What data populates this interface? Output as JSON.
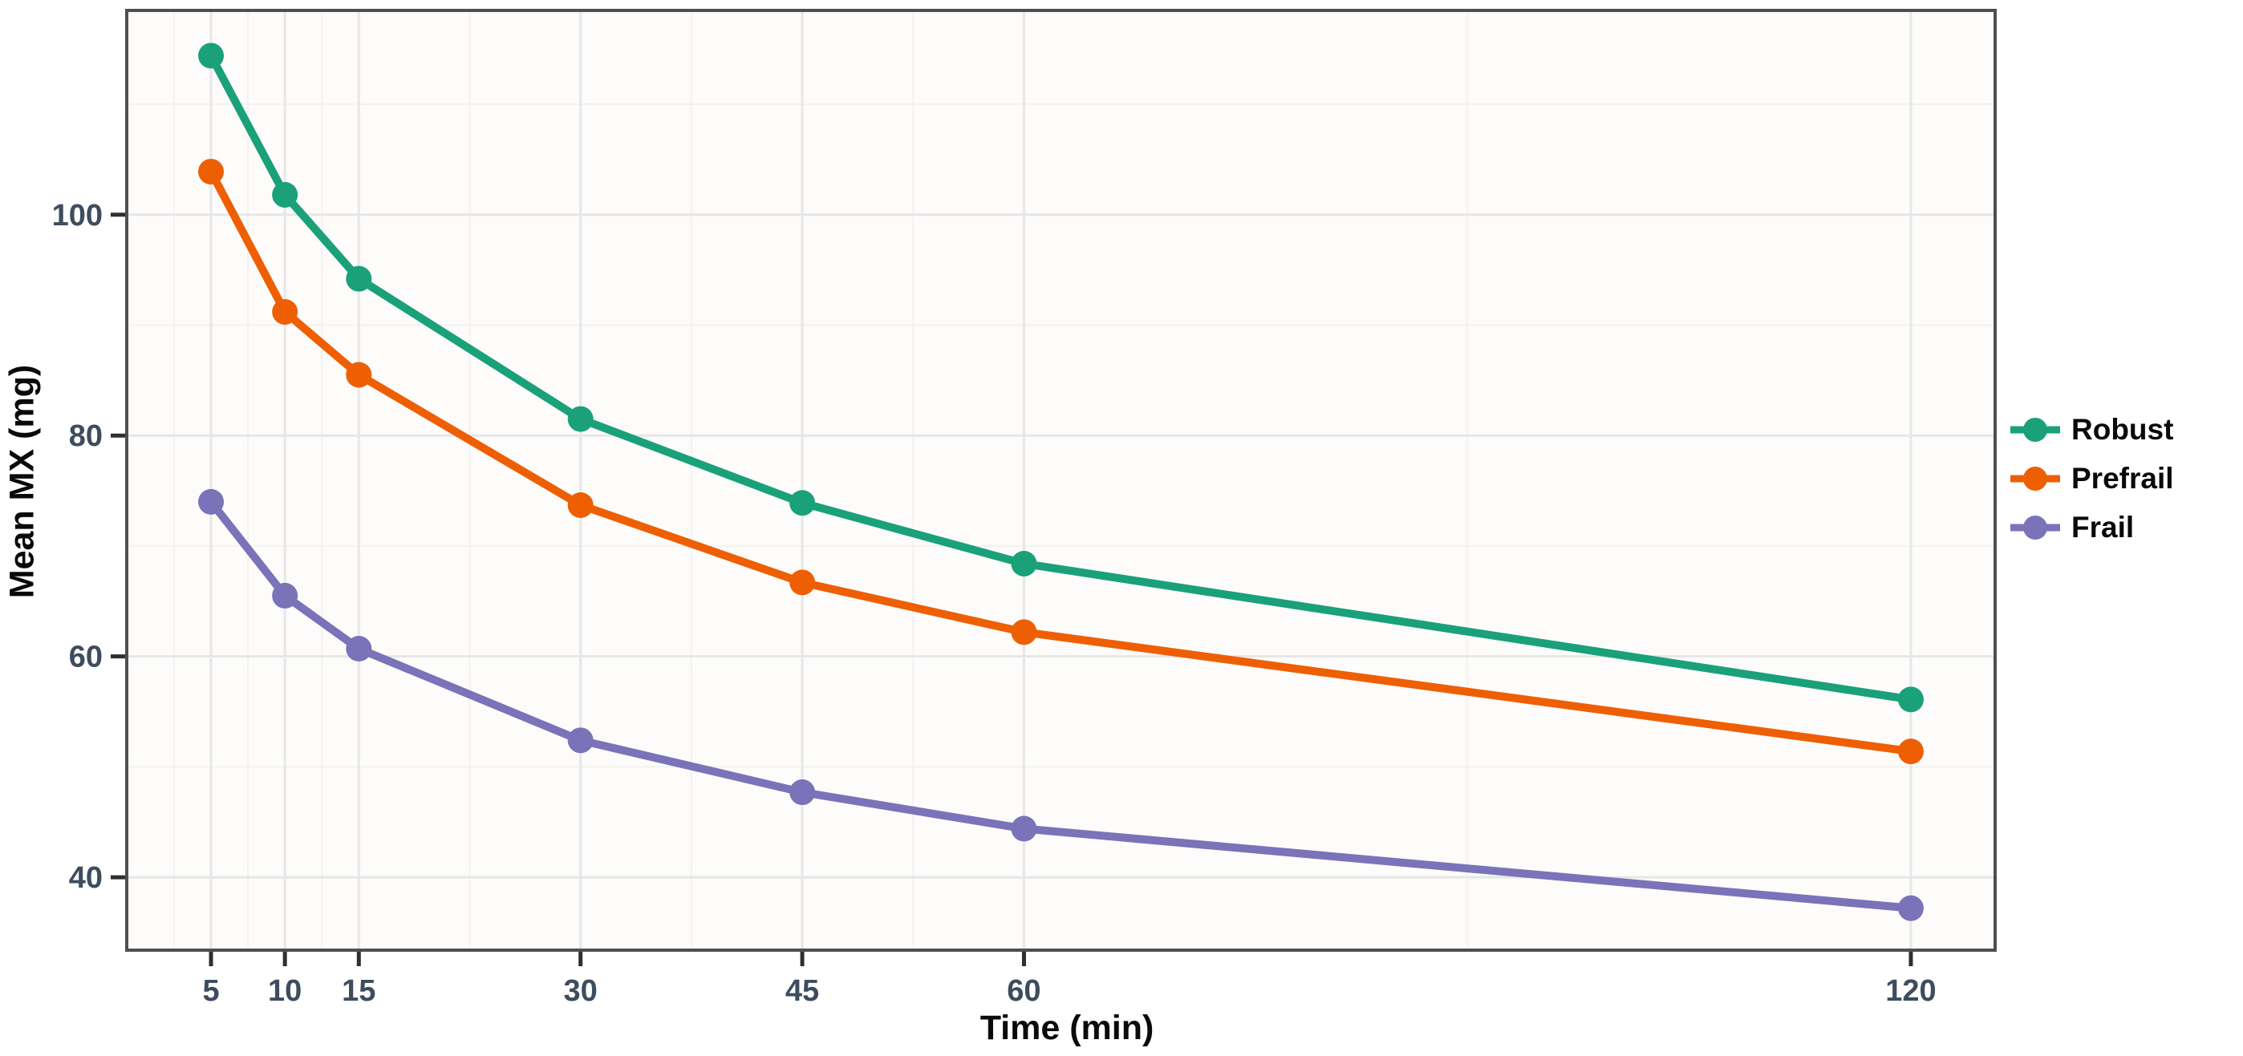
{
  "chart_data": {
    "type": "line",
    "title": "",
    "xlabel": "Time (min)",
    "ylabel": "Mean MX (mg)",
    "x": [
      5,
      10,
      15,
      30,
      45,
      60,
      120
    ],
    "x_ticks": [
      "5",
      "10",
      "15",
      "30",
      "45",
      "60",
      "120"
    ],
    "y_ticks": [
      "40",
      "60",
      "80",
      "100"
    ],
    "y_tick_values": [
      40,
      60,
      80,
      100
    ],
    "xlim": [
      -0.7,
      125.7
    ],
    "ylim": [
      33.4,
      118.5
    ],
    "grid": true,
    "legend_position": "right",
    "series": [
      {
        "name": "Robust",
        "color": "#1aa179",
        "values": [
          114.4,
          101.8,
          94.2,
          81.5,
          73.9,
          68.4,
          56.1
        ]
      },
      {
        "name": "Prefrail",
        "color": "#ee5f04",
        "values": [
          103.9,
          91.2,
          85.5,
          73.7,
          66.7,
          62.2,
          51.4
        ]
      },
      {
        "name": "Frail",
        "color": "#7a73b9",
        "values": [
          74.0,
          65.5,
          60.7,
          52.4,
          47.7,
          44.4,
          37.2
        ]
      }
    ],
    "style": {
      "panel_bg": "#fdfcfb",
      "panel_border": "#4f4f4f",
      "grid_major": "#e7e7e7",
      "grid_minor": "#f3f2f1",
      "tick_mark": "#2f2f2f",
      "tick_label": "#3e4c5e"
    }
  }
}
